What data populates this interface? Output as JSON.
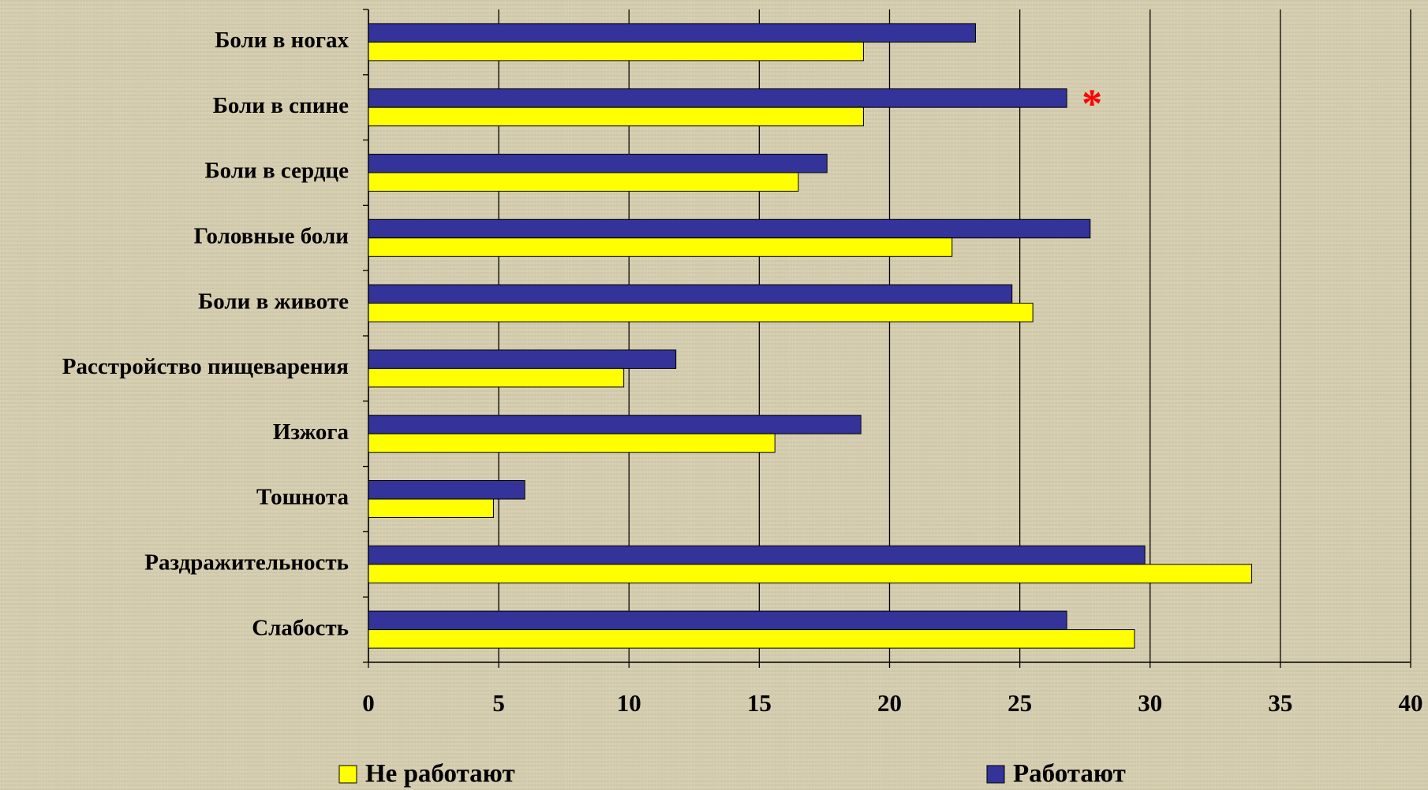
{
  "chart_data": {
    "type": "bar",
    "orientation": "horizontal",
    "categories": [
      "Боли в ногах",
      "Боли в спине",
      "Боли в сердце",
      "Головные боли",
      "Боли в животе",
      "Расстройство пищеварения",
      "Изжога",
      "Тошнота",
      "Раздражительность",
      "Слабость"
    ],
    "series": [
      {
        "name": "Не работают",
        "color": "#ffff00",
        "values": [
          19.0,
          19.0,
          16.5,
          22.4,
          25.5,
          9.8,
          15.6,
          4.8,
          33.9,
          29.4
        ]
      },
      {
        "name": "Работают",
        "color": "#333399",
        "values": [
          23.3,
          26.8,
          17.6,
          27.7,
          24.7,
          11.8,
          18.9,
          6.0,
          29.8,
          26.8
        ]
      }
    ],
    "annotation": "*",
    "annotation_color": "#ff0000",
    "xlim": [
      0,
      40
    ],
    "xticks": [
      0,
      5,
      10,
      15,
      20,
      25,
      30,
      35,
      40
    ],
    "grid": true,
    "legend": "bottom"
  }
}
